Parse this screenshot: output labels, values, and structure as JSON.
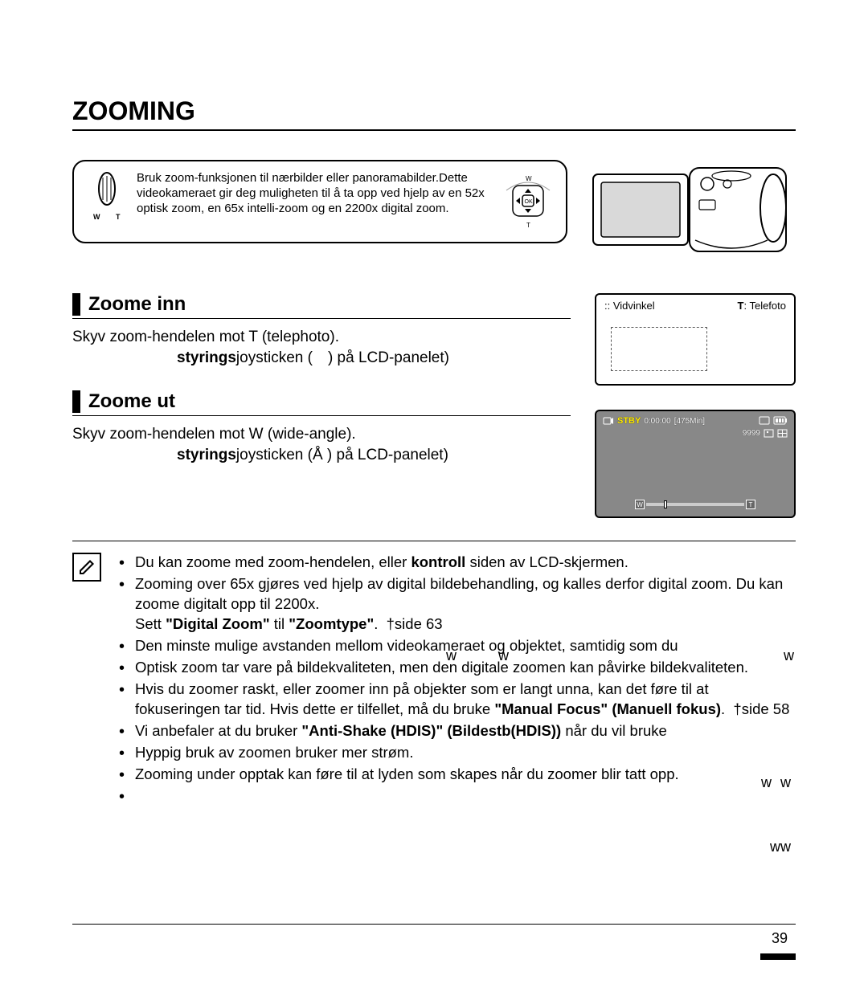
{
  "title": "ZOOMING",
  "intro": {
    "text": "Bruk zoom-funksjonen til nærbilder eller panoramabilder.Dette videokameraet gir deg muligheten til å ta opp ved hjelp av en 52x optisk zoom, en 65x intelli-zoom og en 2200x digital zoom.",
    "lever_labels": {
      "w": "W",
      "t": "T"
    },
    "joystick_center": "OK",
    "joystick_w": "W",
    "joystick_t": "T"
  },
  "sections": {
    "zoom_in": {
      "heading": "Zoome inn",
      "line1": "Skyv zoom-hendelen mot T (telephoto).",
      "line2_prefix": "styrings",
      "line2_rest": "joysticken (　) på LCD-panelet)"
    },
    "zoom_out": {
      "heading": "Zoome ut",
      "line1": "Skyv zoom-hendelen mot W (wide-angle).",
      "line2_prefix": "styrings",
      "line2_rest": "joysticken (Å ) på LCD-panelet)"
    }
  },
  "lcd1": {
    "left_label": ":: Vidvinkel",
    "right_label_bold": "T",
    "right_label_rest": ": Telefoto"
  },
  "lcd2": {
    "stby": "STBY",
    "time": "0:00:00",
    "remain": "[475Min]",
    "count": "9999",
    "zoom_w": "W",
    "zoom_t": "T",
    "bg_color": "#888888",
    "stby_color": "#ffeb00"
  },
  "notes": [
    {
      "html": "Du kan zoome med zoom-hendelen, eller <b>kontroll</b> siden av LCD-skjermen."
    },
    {
      "html": "Zooming over 65x gjøres ved hjelp av digital bildebehandling, og kalles derfor digital zoom. Du kan zoome digitalt opp til 2200x.<br>Sett <b>\"Digital Zoom\"</b> til <b>\"Zoomtype\"</b>. &nbsp;†side 63"
    },
    {
      "html": "Den minste mulige avstanden mellom videokameraet og objektet, samtidig som du"
    },
    {
      "html": "Optisk zoom tar vare på bildekvaliteten, men den digitale zoomen kan påvirke bildekvaliteten."
    },
    {
      "html": "Hvis du zoomer raskt, eller zoomer inn på objekter som er langt unna, kan det føre til at fokuseringen tar tid. Hvis dette er tilfellet, må du bruke <b>\"Manual Focus\" (Manuell fokus)</b>. &nbsp;†side 58"
    },
    {
      "html": "Vi anbefaler at du bruker <b>\"Anti-Shake (HDIS)\" (Bildestb(HDIS))</b> når du vil bruke"
    },
    {
      "html": "Hyppig bruk av zoomen bruker mer strøm."
    },
    {
      "html": "Zooming under opptak kan føre til at lyden som skapes når du zoomer blir tatt opp."
    },
    {
      "html": ""
    }
  ],
  "floaters": {
    "w1": "w",
    "w2": "w",
    "w3": "w",
    "w4": "w",
    "w5": "w",
    "w6": "ww"
  },
  "page_number": "39",
  "colors": {
    "text": "#000000",
    "bg": "#ffffff",
    "lcd_grey": "#888888"
  }
}
